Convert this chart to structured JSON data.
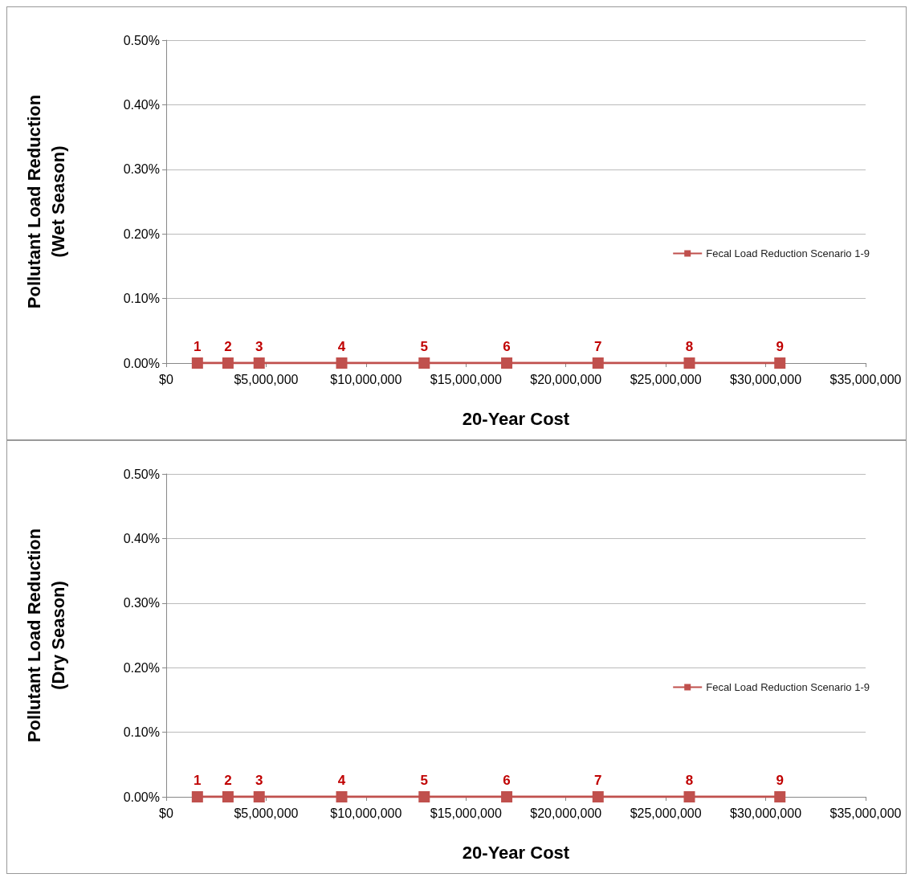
{
  "chart_data": [
    {
      "type": "line",
      "xlabel": "20-Year Cost",
      "ylabel": "Pollutant Load Reduction\n(Wet Season)",
      "series": [
        {
          "name": "Fecal Load Reduction Scenario 1-9",
          "color": "#c0504d",
          "x": [
            1560000,
            3090000,
            4650000,
            8780000,
            12910000,
            17040000,
            21610000,
            26180000,
            30710000
          ],
          "values": [
            0,
            0,
            0,
            0,
            0,
            0,
            0,
            0,
            0
          ]
        }
      ],
      "annotations": [
        {
          "text": "1",
          "x": 1560000,
          "y": 0
        },
        {
          "text": "2",
          "x": 3090000,
          "y": 0
        },
        {
          "text": "3",
          "x": 4650000,
          "y": 0
        },
        {
          "text": "4",
          "x": 8780000,
          "y": 0
        },
        {
          "text": "5",
          "x": 12910000,
          "y": 0
        },
        {
          "text": "6",
          "x": 17040000,
          "y": 0
        },
        {
          "text": "7",
          "x": 21610000,
          "y": 0
        },
        {
          "text": "8",
          "x": 26180000,
          "y": 0
        },
        {
          "text": "9",
          "x": 30710000,
          "y": 0
        }
      ],
      "xlim": [
        0,
        35000000
      ],
      "xticks": [
        {
          "value": 0,
          "label": "$0"
        },
        {
          "value": 5000000,
          "label": "$5,000,000"
        },
        {
          "value": 10000000,
          "label": "$10,000,000"
        },
        {
          "value": 15000000,
          "label": "$15,000,000"
        },
        {
          "value": 20000000,
          "label": "$20,000,000"
        },
        {
          "value": 25000000,
          "label": "$25,000,000"
        },
        {
          "value": 30000000,
          "label": "$30,000,000"
        },
        {
          "value": 35000000,
          "label": "$35,000,000"
        }
      ],
      "ylim": [
        0,
        0.5
      ],
      "yticks": [
        {
          "value": 0,
          "label": "0.00%"
        },
        {
          "value": 0.1,
          "label": "0.10%"
        },
        {
          "value": 0.2,
          "label": "0.20%"
        },
        {
          "value": 0.3,
          "label": "0.30%"
        },
        {
          "value": 0.4,
          "label": "0.40%"
        },
        {
          "value": 0.5,
          "label": "0.50%"
        }
      ],
      "grid": "y",
      "legend": "right",
      "marker": "square",
      "line_style": "solid"
    },
    {
      "type": "line",
      "xlabel": "20-Year Cost",
      "ylabel": "Pollutant Load Reduction\n(Dry Season)",
      "series": [
        {
          "name": "Fecal Load Reduction Scenario 1-9",
          "color": "#c0504d",
          "x": [
            1560000,
            3090000,
            4650000,
            8780000,
            12910000,
            17040000,
            21610000,
            26180000,
            30710000
          ],
          "values": [
            0,
            0,
            0,
            0,
            0,
            0,
            0,
            0,
            0
          ]
        }
      ],
      "annotations": [
        {
          "text": "1",
          "x": 1560000,
          "y": 0
        },
        {
          "text": "2",
          "x": 3090000,
          "y": 0
        },
        {
          "text": "3",
          "x": 4650000,
          "y": 0
        },
        {
          "text": "4",
          "x": 8780000,
          "y": 0
        },
        {
          "text": "5",
          "x": 12910000,
          "y": 0
        },
        {
          "text": "6",
          "x": 17040000,
          "y": 0
        },
        {
          "text": "7",
          "x": 21610000,
          "y": 0
        },
        {
          "text": "8",
          "x": 26180000,
          "y": 0
        },
        {
          "text": "9",
          "x": 30710000,
          "y": 0
        }
      ],
      "xlim": [
        0,
        35000000
      ],
      "xticks": [
        {
          "value": 0,
          "label": "$0"
        },
        {
          "value": 5000000,
          "label": "$5,000,000"
        },
        {
          "value": 10000000,
          "label": "$10,000,000"
        },
        {
          "value": 15000000,
          "label": "$15,000,000"
        },
        {
          "value": 20000000,
          "label": "$20,000,000"
        },
        {
          "value": 25000000,
          "label": "$25,000,000"
        },
        {
          "value": 30000000,
          "label": "$30,000,000"
        },
        {
          "value": 35000000,
          "label": "$35,000,000"
        }
      ],
      "ylim": [
        0,
        0.5
      ],
      "yticks": [
        {
          "value": 0,
          "label": "0.00%"
        },
        {
          "value": 0.1,
          "label": "0.10%"
        },
        {
          "value": 0.2,
          "label": "0.20%"
        },
        {
          "value": 0.3,
          "label": "0.30%"
        },
        {
          "value": 0.4,
          "label": "0.40%"
        },
        {
          "value": 0.5,
          "label": "0.50%"
        }
      ],
      "grid": "y",
      "legend": "right",
      "marker": "square",
      "line_style": "solid"
    }
  ]
}
